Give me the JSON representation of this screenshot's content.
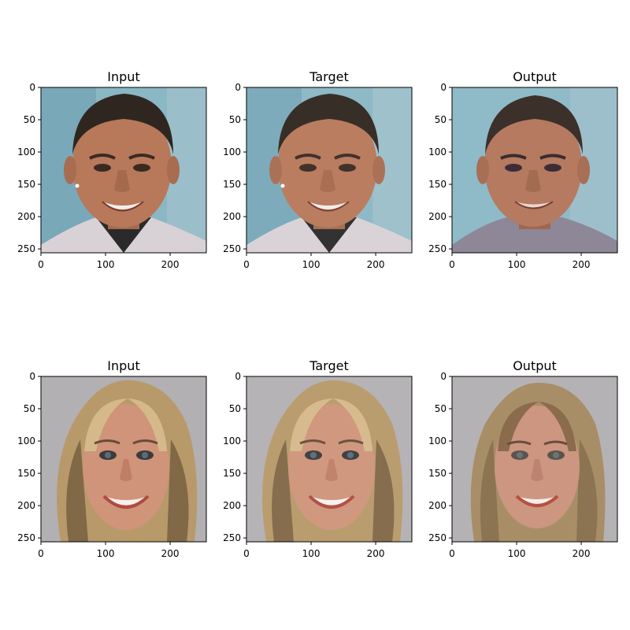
{
  "figure": {
    "panels": [
      {
        "title": "Input",
        "subject": "man-face",
        "version": "input"
      },
      {
        "title": "Target",
        "subject": "man-face",
        "version": "target"
      },
      {
        "title": "Output",
        "subject": "man-face",
        "version": "output"
      },
      {
        "title": "Input",
        "subject": "woman-face",
        "version": "input"
      },
      {
        "title": "Target",
        "subject": "woman-face",
        "version": "target"
      },
      {
        "title": "Output",
        "subject": "woman-face",
        "version": "output"
      }
    ],
    "x_ticks": [
      "0",
      "100",
      "200"
    ],
    "y_ticks": [
      "0",
      "50",
      "100",
      "150",
      "200",
      "250"
    ],
    "tick_values_x": [
      0,
      100,
      200
    ],
    "tick_values_y": [
      0,
      50,
      100,
      150,
      200,
      250
    ],
    "image_extent": [
      0,
      256
    ],
    "colors": {
      "man_bg": "#7fb3c4",
      "man_skin": "#b8785a",
      "man_hair": "#2f2620",
      "man_shirt": "#2a2a2a",
      "man_jacket": "#d8d2d6",
      "woman_bg": "#b3b0b4",
      "woman_skin": "#cf9479",
      "woman_hair": "#b89a6a",
      "woman_hair_dark": "#6a5238",
      "output_man_bg": "#8fbac8",
      "output_man_shirt": "#8d8797",
      "output_woman_hair": "#a88e66"
    }
  }
}
